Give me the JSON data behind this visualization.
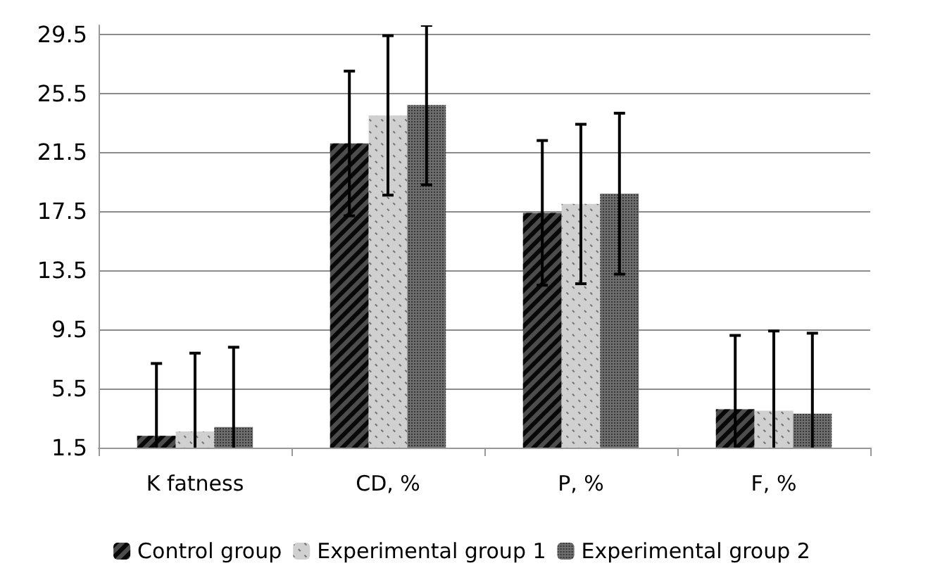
{
  "chart_data": {
    "type": "bar",
    "categories": [
      "K fatness",
      "CD, %",
      "P, %",
      "F, %"
    ],
    "series": [
      {
        "name": "Control group",
        "color": "#4d4d4d",
        "values": [
          2.3,
          22.1,
          17.4,
          4.1
        ],
        "errors": [
          4.9,
          4.9,
          4.9,
          5.0
        ]
      },
      {
        "name": "Experimental group 1",
        "color": "#d0d0d0",
        "values": [
          2.6,
          24.0,
          18.0,
          4.0
        ],
        "errors": [
          5.3,
          5.4,
          5.4,
          5.4
        ]
      },
      {
        "name": "Experimental group 2",
        "color": "#6e6e6e",
        "values": [
          2.9,
          24.7,
          18.7,
          3.8
        ],
        "errors": [
          5.4,
          5.4,
          5.45,
          5.45
        ]
      }
    ],
    "ylim": [
      1.5,
      30.1
    ],
    "yticks": [
      1.5,
      5.5,
      9.5,
      13.5,
      17.5,
      21.5,
      25.5,
      29.5
    ],
    "grid": "y",
    "legend": "bottom"
  }
}
